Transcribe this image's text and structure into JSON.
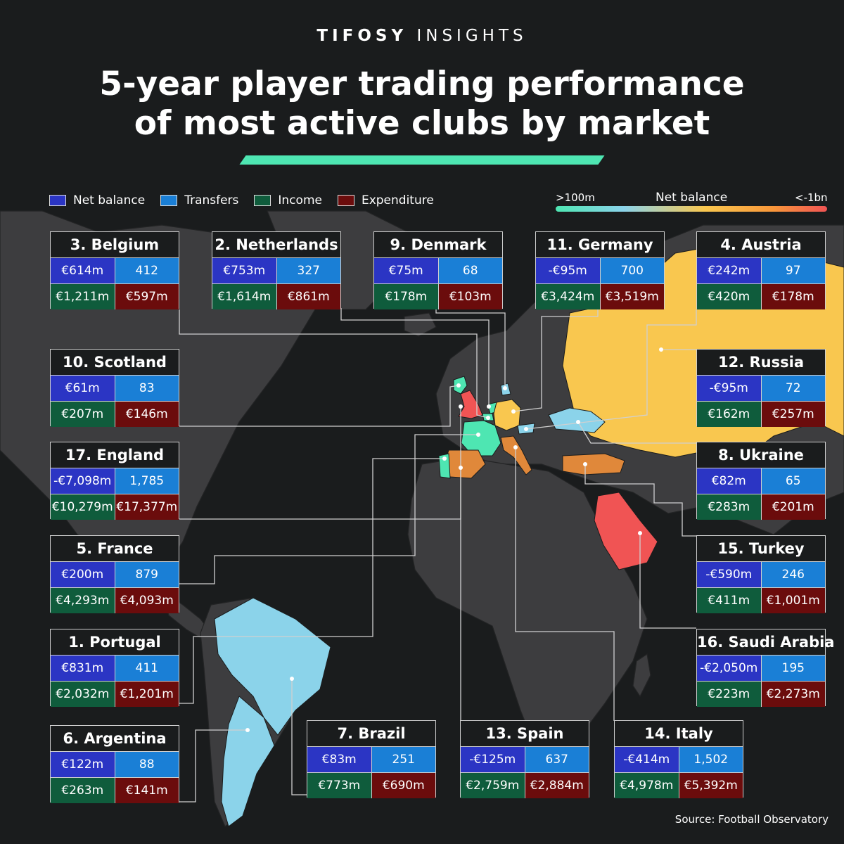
{
  "brand": {
    "bold": "TIFOSY",
    "light": "INSIGHTS"
  },
  "title": {
    "line1": "5-year player trading performance",
    "line2": "of most active clubs by market"
  },
  "legend": {
    "net_balance": "Net balance",
    "transfers": "Transfers",
    "income": "Income",
    "expenditure": "Expenditure",
    "colors": {
      "net_balance": "#2b35c4",
      "transfers": "#1a7fd6",
      "income": "#0f5c3c",
      "expenditure": "#6b0c0c"
    }
  },
  "scale": {
    "title": "Net balance",
    "low": ">100m",
    "high": "<-1bn",
    "colors": [
      "#4ee6b2",
      "#8bd3ea",
      "#f9c74f",
      "#f8973a",
      "#f05454"
    ]
  },
  "source": "Source: Football Observatory",
  "countries": [
    {
      "name": "3. Belgium",
      "net": "€614m",
      "transfers": "412",
      "income": "€1,211m",
      "expenditure": "€597m"
    },
    {
      "name": "2. Netherlands",
      "net": "€753m",
      "transfers": "327",
      "income": "€1,614m",
      "expenditure": "€861m"
    },
    {
      "name": "9. Denmark",
      "net": "€75m",
      "transfers": "68",
      "income": "€178m",
      "expenditure": "€103m"
    },
    {
      "name": "11. Germany",
      "net": "-€95m",
      "transfers": "700",
      "income": "€3,424m",
      "expenditure": "€3,519m"
    },
    {
      "name": "4. Austria",
      "net": "€242m",
      "transfers": "97",
      "income": "€420m",
      "expenditure": "€178m"
    },
    {
      "name": "10. Scotland",
      "net": "€61m",
      "transfers": "83",
      "income": "€207m",
      "expenditure": "€146m"
    },
    {
      "name": "12. Russia",
      "net": "-€95m",
      "transfers": "72",
      "income": "€162m",
      "expenditure": "€257m"
    },
    {
      "name": "17. England",
      "net": "-€7,098m",
      "transfers": "1,785",
      "income": "€10,279m",
      "expenditure": "€17,377m"
    },
    {
      "name": "8. Ukraine",
      "net": "€82m",
      "transfers": "65",
      "income": "€283m",
      "expenditure": "€201m"
    },
    {
      "name": "5. France",
      "net": "€200m",
      "transfers": "879",
      "income": "€4,293m",
      "expenditure": "€4,093m"
    },
    {
      "name": "15. Turkey",
      "net": "-€590m",
      "transfers": "246",
      "income": "€411m",
      "expenditure": "€1,001m"
    },
    {
      "name": "1. Portugal",
      "net": "€831m",
      "transfers": "411",
      "income": "€2,032m",
      "expenditure": "€1,201m"
    },
    {
      "name": "16. Saudi Arabia",
      "net": "-€2,050m",
      "transfers": "195",
      "income": "€223m",
      "expenditure": "€2,273m"
    },
    {
      "name": "6. Argentina",
      "net": "€122m",
      "transfers": "88",
      "income": "€263m",
      "expenditure": "€141m"
    },
    {
      "name": "7. Brazil",
      "net": "€83m",
      "transfers": "251",
      "income": "€773m",
      "expenditure": "€690m"
    },
    {
      "name": "13. Spain",
      "net": "-€125m",
      "transfers": "637",
      "income": "€2,759m",
      "expenditure": "€2,884m"
    },
    {
      "name": "14. Italy",
      "net": "-€414m",
      "transfers": "1,502",
      "income": "€4,978m",
      "expenditure": "€5,392m"
    }
  ],
  "fills": {
    "england": "#f05454",
    "scotland": "#4ee6b2",
    "belgium": "#4ee6b2",
    "netherlands": "#4ee6b2",
    "portugal": "#4ee6b2",
    "france": "#4ee6b2",
    "denmark": "#8bd3ea",
    "austria": "#8bd3ea",
    "ukraine": "#8bd3ea",
    "brazil": "#8bd3ea",
    "argentina": "#8bd3ea",
    "germany": "#f9c74f",
    "russia": "#f9c74f",
    "spain": "#e0883a",
    "italy": "#e0883a",
    "turkey": "#e0883a",
    "saudi": "#f05454"
  }
}
